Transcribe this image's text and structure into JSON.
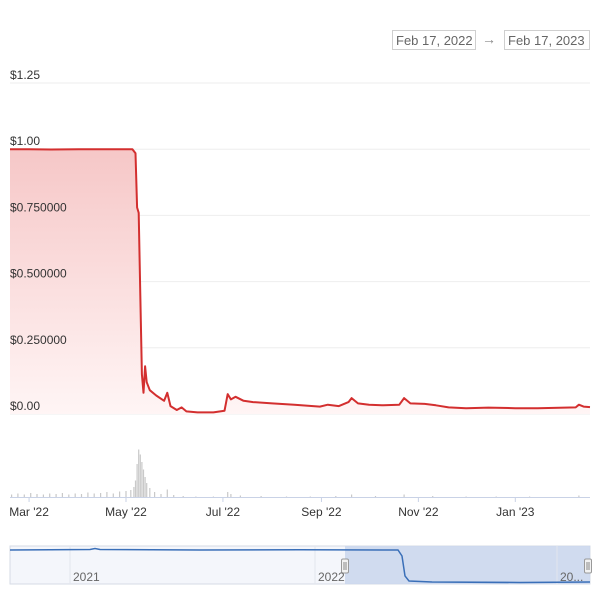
{
  "date_range": {
    "from": "Feb 17, 2022",
    "arrow": "→",
    "to": "Feb 17, 2023"
  },
  "colors": {
    "line": "#d32f2f",
    "fill_top": "#f6c7c7",
    "fill_bottom": "#fff5f5",
    "grid": "#eeeeee",
    "volume": "#c9c9c9",
    "navigator_line": "#3a6fb8",
    "navigator_mask": "#c9d6ec",
    "navigator_bg": "#f4f6fb"
  },
  "chart_data": {
    "type": "line",
    "title": "",
    "xlabel": "",
    "ylabel": "",
    "ylim": [
      0,
      1.25
    ],
    "y_ticks": [
      "$0.00",
      "$0.250000",
      "$0.500000",
      "$0.750000",
      "$1.00",
      "$1.25"
    ],
    "x_ticks": [
      "Mar '22",
      "May '22",
      "Jul '22",
      "Sep '22",
      "Nov '22",
      "Jan '23"
    ],
    "x_range": [
      "2022-02-17",
      "2023-02-17"
    ],
    "grid": true,
    "series": [
      {
        "values": [
          [
            "2022-02-17",
            1.0
          ],
          [
            "2022-03-01",
            1.0
          ],
          [
            "2022-03-15",
            0.999
          ],
          [
            "2022-04-01",
            1.0
          ],
          [
            "2022-04-20",
            1.0
          ],
          [
            "2022-05-05",
            1.0
          ],
          [
            "2022-05-07",
            0.985
          ],
          [
            "2022-05-08",
            0.78
          ],
          [
            "2022-05-09",
            0.76
          ],
          [
            "2022-05-10",
            0.45
          ],
          [
            "2022-05-11",
            0.15
          ],
          [
            "2022-05-12",
            0.08
          ],
          [
            "2022-05-13",
            0.18
          ],
          [
            "2022-05-14",
            0.12
          ],
          [
            "2022-05-16",
            0.09
          ],
          [
            "2022-05-20",
            0.07
          ],
          [
            "2022-05-25",
            0.05
          ],
          [
            "2022-05-27",
            0.08
          ],
          [
            "2022-05-29",
            0.03
          ],
          [
            "2022-06-02",
            0.015
          ],
          [
            "2022-06-05",
            0.025
          ],
          [
            "2022-06-08",
            0.01
          ],
          [
            "2022-06-15",
            0.006
          ],
          [
            "2022-06-25",
            0.006
          ],
          [
            "2022-07-02",
            0.012
          ],
          [
            "2022-07-04",
            0.075
          ],
          [
            "2022-07-06",
            0.055
          ],
          [
            "2022-07-09",
            0.065
          ],
          [
            "2022-07-14",
            0.05
          ],
          [
            "2022-07-20",
            0.045
          ],
          [
            "2022-08-01",
            0.04
          ],
          [
            "2022-08-15",
            0.035
          ],
          [
            "2022-08-31",
            0.028
          ],
          [
            "2022-09-05",
            0.035
          ],
          [
            "2022-09-12",
            0.03
          ],
          [
            "2022-09-18",
            0.045
          ],
          [
            "2022-09-20",
            0.06
          ],
          [
            "2022-09-24",
            0.04
          ],
          [
            "2022-10-01",
            0.035
          ],
          [
            "2022-10-10",
            0.033
          ],
          [
            "2022-10-20",
            0.035
          ],
          [
            "2022-10-23",
            0.06
          ],
          [
            "2022-10-27",
            0.04
          ],
          [
            "2022-11-05",
            0.038
          ],
          [
            "2022-11-12",
            0.033
          ],
          [
            "2022-11-20",
            0.025
          ],
          [
            "2022-12-01",
            0.022
          ],
          [
            "2022-12-15",
            0.024
          ],
          [
            "2023-01-01",
            0.022
          ],
          [
            "2023-01-15",
            0.022
          ],
          [
            "2023-02-01",
            0.024
          ],
          [
            "2023-02-08",
            0.025
          ],
          [
            "2023-02-10",
            0.035
          ],
          [
            "2023-02-13",
            0.028
          ],
          [
            "2023-02-17",
            0.026
          ]
        ]
      }
    ],
    "volume": [
      [
        "2022-02-18",
        0.05
      ],
      [
        "2022-02-22",
        0.07
      ],
      [
        "2022-02-26",
        0.05
      ],
      [
        "2022-03-02",
        0.08
      ],
      [
        "2022-03-06",
        0.06
      ],
      [
        "2022-03-10",
        0.05
      ],
      [
        "2022-03-14",
        0.07
      ],
      [
        "2022-03-18",
        0.06
      ],
      [
        "2022-03-22",
        0.08
      ],
      [
        "2022-03-26",
        0.05
      ],
      [
        "2022-03-30",
        0.07
      ],
      [
        "2022-04-03",
        0.06
      ],
      [
        "2022-04-07",
        0.09
      ],
      [
        "2022-04-11",
        0.07
      ],
      [
        "2022-04-15",
        0.08
      ],
      [
        "2022-04-19",
        0.1
      ],
      [
        "2022-04-23",
        0.07
      ],
      [
        "2022-04-27",
        0.11
      ],
      [
        "2022-05-01",
        0.12
      ],
      [
        "2022-05-04",
        0.14
      ],
      [
        "2022-05-06",
        0.2
      ],
      [
        "2022-05-07",
        0.33
      ],
      [
        "2022-05-08",
        0.66
      ],
      [
        "2022-05-09",
        0.95
      ],
      [
        "2022-05-10",
        0.85
      ],
      [
        "2022-05-11",
        0.7
      ],
      [
        "2022-05-12",
        0.55
      ],
      [
        "2022-05-13",
        0.4
      ],
      [
        "2022-05-14",
        0.28
      ],
      [
        "2022-05-16",
        0.18
      ],
      [
        "2022-05-19",
        0.1
      ],
      [
        "2022-05-23",
        0.06
      ],
      [
        "2022-05-27",
        0.15
      ],
      [
        "2022-05-31",
        0.04
      ],
      [
        "2022-06-06",
        0.02
      ],
      [
        "2022-06-14",
        0.01
      ],
      [
        "2022-06-25",
        0.01
      ],
      [
        "2022-07-04",
        0.1
      ],
      [
        "2022-07-06",
        0.06
      ],
      [
        "2022-07-12",
        0.03
      ],
      [
        "2022-07-25",
        0.02
      ],
      [
        "2022-08-10",
        0.01
      ],
      [
        "2022-08-25",
        0.01
      ],
      [
        "2022-09-10",
        0.02
      ],
      [
        "2022-09-20",
        0.05
      ],
      [
        "2022-10-05",
        0.02
      ],
      [
        "2022-10-23",
        0.05
      ],
      [
        "2022-11-10",
        0.02
      ],
      [
        "2022-12-01",
        0.01
      ],
      [
        "2022-12-20",
        0.01
      ],
      [
        "2023-01-10",
        0.01
      ],
      [
        "2023-02-10",
        0.03
      ]
    ],
    "navigator": {
      "labels": [
        "2021",
        "2022",
        "20..."
      ]
    }
  }
}
